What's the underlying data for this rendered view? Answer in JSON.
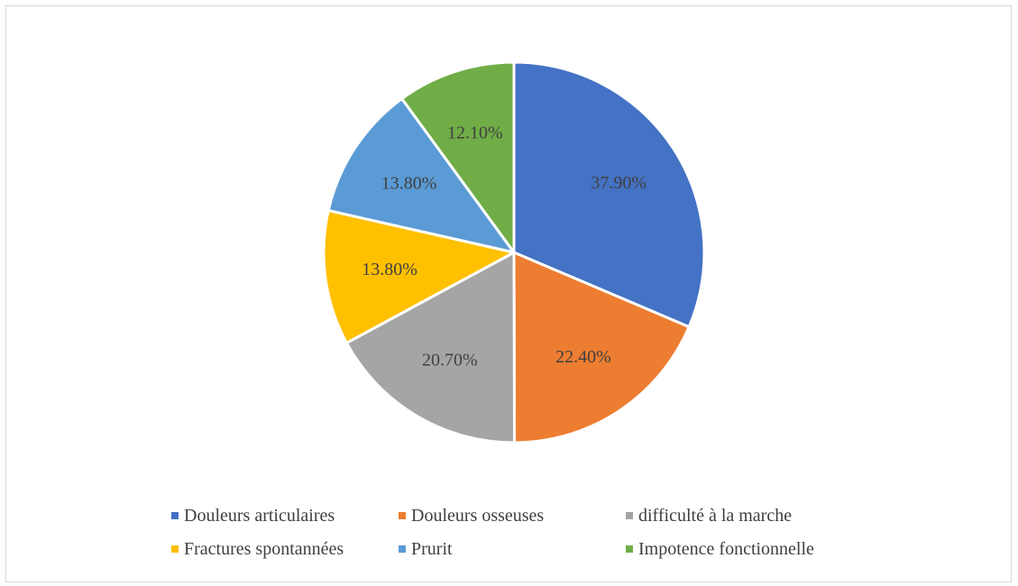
{
  "chart_data": {
    "type": "pie",
    "title": "",
    "slices": [
      {
        "label": "Douleurs articulaires",
        "value": 37.9,
        "display": "37.90%",
        "color": "#4472C4"
      },
      {
        "label": "Douleurs osseuses",
        "value": 22.4,
        "display": "22.40%",
        "color": "#ED7D31"
      },
      {
        "label": "difficulté à la marche",
        "value": 20.7,
        "display": "20.70%",
        "color": "#A5A5A5"
      },
      {
        "label": "Fractures spontannées",
        "value": 13.8,
        "display": "13.80%",
        "color": "#FFC000"
      },
      {
        "label": "Prurit",
        "value": 13.8,
        "display": "13.80%",
        "color": "#5B9BD5"
      },
      {
        "label": "Impotence fonctionnelle",
        "value": 12.1,
        "display": "12.10%",
        "color": "#70AD47"
      }
    ],
    "start_position": "top",
    "direction": "clockwise",
    "legend_position": "bottom"
  },
  "label_color": "#404040"
}
